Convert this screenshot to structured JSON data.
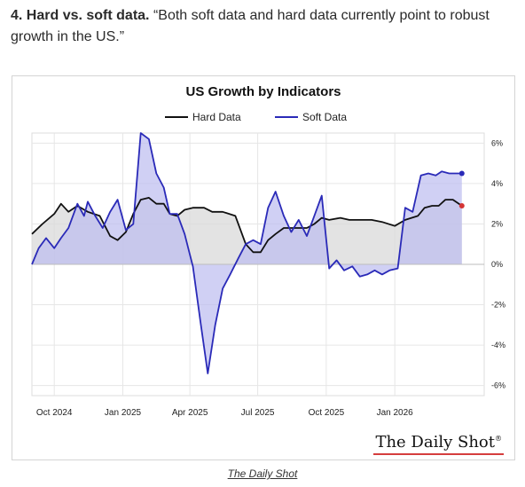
{
  "intro": {
    "heading": "4. Hard vs. soft data.",
    "quote": "“Both soft data and hard data currently point to robust growth in the US.”"
  },
  "caption": "The Daily Shot",
  "brand": {
    "name": "The Daily Shot",
    "mark": "®"
  },
  "colors": {
    "hard": "#111111",
    "soft": "#2a2ab8",
    "soft_fill": "#bcbcf0",
    "hard_fill": "#dadada",
    "end_dot_hard": "#d43434"
  },
  "chart_data": {
    "type": "line",
    "title": "US Growth by Indicators",
    "legend_position": "top-center",
    "grid": true,
    "xlim": [
      "2024-09-01",
      "2026-05-01"
    ],
    "ylim": [
      -6.5,
      6.5
    ],
    "y_ticks": [
      6,
      4,
      2,
      0,
      -2,
      -4,
      -6
    ],
    "y_tick_labels": [
      "6%",
      "4%",
      "2%",
      "0%",
      "-2%",
      "-4%",
      "-6%"
    ],
    "x_ticks": [
      "2024-10-01",
      "2025-01-01",
      "2025-04-01",
      "2025-07-01",
      "2025-10-01",
      "2026-01-01"
    ],
    "x_tick_labels": [
      "Oct 2024",
      "Jan 2025",
      "Apr 2025",
      "Jul 2025",
      "Oct 2025",
      "Jan 2026"
    ],
    "series": [
      {
        "name": "Hard Data",
        "points": [
          [
            "2024-09-01",
            1.5
          ],
          [
            "2024-09-15",
            2.0
          ],
          [
            "2024-10-01",
            2.5
          ],
          [
            "2024-10-10",
            3.0
          ],
          [
            "2024-10-20",
            2.6
          ],
          [
            "2024-11-01",
            2.9
          ],
          [
            "2024-11-15",
            2.6
          ],
          [
            "2024-12-01",
            2.4
          ],
          [
            "2024-12-15",
            1.4
          ],
          [
            "2024-12-25",
            1.2
          ],
          [
            "2025-01-05",
            1.6
          ],
          [
            "2025-01-15",
            2.5
          ],
          [
            "2025-01-25",
            3.2
          ],
          [
            "2025-02-05",
            3.3
          ],
          [
            "2025-02-15",
            3.0
          ],
          [
            "2025-02-25",
            3.0
          ],
          [
            "2025-03-05",
            2.5
          ],
          [
            "2025-03-15",
            2.4
          ],
          [
            "2025-03-25",
            2.7
          ],
          [
            "2025-04-05",
            2.8
          ],
          [
            "2025-04-20",
            2.8
          ],
          [
            "2025-05-01",
            2.6
          ],
          [
            "2025-05-15",
            2.6
          ],
          [
            "2025-06-01",
            2.4
          ],
          [
            "2025-06-15",
            1.0
          ],
          [
            "2025-06-25",
            0.6
          ],
          [
            "2025-07-05",
            0.6
          ],
          [
            "2025-07-15",
            1.2
          ],
          [
            "2025-07-25",
            1.5
          ],
          [
            "2025-08-05",
            1.8
          ],
          [
            "2025-08-15",
            1.8
          ],
          [
            "2025-08-25",
            1.8
          ],
          [
            "2025-09-05",
            1.8
          ],
          [
            "2025-09-15",
            2.0
          ],
          [
            "2025-09-25",
            2.3
          ],
          [
            "2025-10-05",
            2.2
          ],
          [
            "2025-10-20",
            2.3
          ],
          [
            "2025-11-01",
            2.2
          ],
          [
            "2025-11-15",
            2.2
          ],
          [
            "2025-12-01",
            2.2
          ],
          [
            "2025-12-15",
            2.1
          ],
          [
            "2026-01-01",
            1.9
          ],
          [
            "2026-01-15",
            2.2
          ],
          [
            "2026-02-01",
            2.4
          ],
          [
            "2026-02-10",
            2.8
          ],
          [
            "2026-02-20",
            2.9
          ],
          [
            "2026-03-01",
            2.9
          ],
          [
            "2026-03-10",
            3.2
          ],
          [
            "2026-03-20",
            3.2
          ],
          [
            "2026-04-01",
            2.9
          ]
        ]
      },
      {
        "name": "Soft Data",
        "points": [
          [
            "2024-09-01",
            0.0
          ],
          [
            "2024-09-10",
            0.8
          ],
          [
            "2024-09-20",
            1.3
          ],
          [
            "2024-10-01",
            0.8
          ],
          [
            "2024-10-10",
            1.3
          ],
          [
            "2024-10-20",
            1.8
          ],
          [
            "2024-11-01",
            3.0
          ],
          [
            "2024-11-10",
            2.4
          ],
          [
            "2024-11-15",
            3.1
          ],
          [
            "2024-11-25",
            2.4
          ],
          [
            "2024-12-05",
            1.8
          ],
          [
            "2024-12-15",
            2.6
          ],
          [
            "2024-12-25",
            3.2
          ],
          [
            "2025-01-05",
            1.7
          ],
          [
            "2025-01-15",
            2.0
          ],
          [
            "2025-01-25",
            6.5
          ],
          [
            "2025-02-05",
            6.2
          ],
          [
            "2025-02-15",
            4.5
          ],
          [
            "2025-02-25",
            3.8
          ],
          [
            "2025-03-05",
            2.5
          ],
          [
            "2025-03-15",
            2.5
          ],
          [
            "2025-03-25",
            1.5
          ],
          [
            "2025-04-05",
            -0.1
          ],
          [
            "2025-04-15",
            -2.8
          ],
          [
            "2025-04-25",
            -5.4
          ],
          [
            "2025-05-05",
            -3.0
          ],
          [
            "2025-05-15",
            -1.2
          ],
          [
            "2025-05-25",
            -0.5
          ],
          [
            "2025-06-05",
            0.3
          ],
          [
            "2025-06-15",
            1.0
          ],
          [
            "2025-06-25",
            1.2
          ],
          [
            "2025-07-05",
            1.0
          ],
          [
            "2025-07-15",
            2.8
          ],
          [
            "2025-07-25",
            3.6
          ],
          [
            "2025-08-05",
            2.4
          ],
          [
            "2025-08-15",
            1.6
          ],
          [
            "2025-08-25",
            2.2
          ],
          [
            "2025-09-05",
            1.4
          ],
          [
            "2025-09-15",
            2.4
          ],
          [
            "2025-09-25",
            3.4
          ],
          [
            "2025-10-05",
            -0.2
          ],
          [
            "2025-10-15",
            0.2
          ],
          [
            "2025-10-25",
            -0.3
          ],
          [
            "2025-11-05",
            -0.1
          ],
          [
            "2025-11-15",
            -0.6
          ],
          [
            "2025-11-25",
            -0.5
          ],
          [
            "2025-12-05",
            -0.3
          ],
          [
            "2025-12-15",
            -0.5
          ],
          [
            "2025-12-25",
            -0.3
          ],
          [
            "2026-01-05",
            -0.2
          ],
          [
            "2026-01-15",
            2.8
          ],
          [
            "2026-01-25",
            2.6
          ],
          [
            "2026-02-05",
            4.4
          ],
          [
            "2026-02-15",
            4.5
          ],
          [
            "2026-02-25",
            4.4
          ],
          [
            "2026-03-05",
            4.6
          ],
          [
            "2026-03-15",
            4.5
          ],
          [
            "2026-03-25",
            4.5
          ],
          [
            "2026-04-01",
            4.5
          ]
        ]
      }
    ]
  }
}
